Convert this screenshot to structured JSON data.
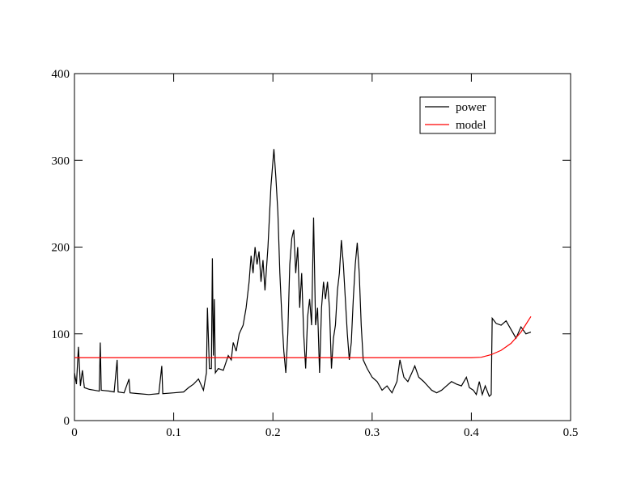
{
  "chart_data": {
    "type": "line",
    "xlim": [
      0,
      0.5
    ],
    "xticks": [
      0,
      0.1,
      0.2,
      0.3,
      0.4,
      0.5
    ],
    "ylim": [
      0,
      400
    ],
    "yticks": [
      0,
      100,
      200,
      300,
      400
    ],
    "grid": false,
    "legend": "upper right",
    "series": [
      {
        "name": "power",
        "color": "#000000",
        "x": [
          0.0,
          0.002,
          0.004,
          0.006,
          0.008,
          0.01,
          0.015,
          0.02,
          0.025,
          0.026,
          0.027,
          0.035,
          0.04,
          0.043,
          0.044,
          0.05,
          0.055,
          0.056,
          0.065,
          0.075,
          0.085,
          0.088,
          0.089,
          0.1,
          0.11,
          0.115,
          0.12,
          0.125,
          0.13,
          0.133,
          0.134,
          0.136,
          0.138,
          0.139,
          0.14,
          0.141,
          0.142,
          0.145,
          0.15,
          0.155,
          0.158,
          0.16,
          0.163,
          0.166,
          0.17,
          0.173,
          0.176,
          0.178,
          0.18,
          0.182,
          0.184,
          0.186,
          0.188,
          0.19,
          0.192,
          0.195,
          0.198,
          0.201,
          0.203,
          0.205,
          0.207,
          0.209,
          0.211,
          0.213,
          0.215,
          0.217,
          0.219,
          0.221,
          0.223,
          0.225,
          0.227,
          0.229,
          0.231,
          0.233,
          0.235,
          0.237,
          0.239,
          0.241,
          0.243,
          0.245,
          0.247,
          0.249,
          0.251,
          0.253,
          0.255,
          0.257,
          0.259,
          0.261,
          0.263,
          0.265,
          0.267,
          0.269,
          0.271,
          0.273,
          0.275,
          0.277,
          0.279,
          0.281,
          0.283,
          0.285,
          0.287,
          0.289,
          0.291,
          0.295,
          0.3,
          0.305,
          0.31,
          0.315,
          0.32,
          0.325,
          0.328,
          0.332,
          0.336,
          0.34,
          0.343,
          0.347,
          0.352,
          0.356,
          0.36,
          0.365,
          0.37,
          0.375,
          0.38,
          0.385,
          0.39,
          0.395,
          0.398,
          0.402,
          0.405,
          0.408,
          0.411,
          0.414,
          0.418,
          0.42,
          0.421,
          0.425,
          0.43,
          0.435,
          0.44,
          0.445,
          0.45,
          0.455,
          0.46
        ],
        "values": [
          55,
          42,
          85,
          40,
          58,
          38,
          36,
          35,
          34,
          90,
          35,
          34,
          33,
          70,
          33,
          32,
          48,
          32,
          31,
          30,
          31,
          63,
          31,
          32,
          33,
          38,
          42,
          48,
          35,
          55,
          130,
          60,
          60,
          187,
          75,
          140,
          55,
          60,
          58,
          75,
          70,
          90,
          80,
          100,
          110,
          130,
          160,
          190,
          170,
          200,
          180,
          195,
          160,
          185,
          150,
          200,
          270,
          313,
          280,
          240,
          170,
          120,
          80,
          55,
          100,
          180,
          210,
          220,
          170,
          200,
          130,
          170,
          100,
          60,
          120,
          140,
          110,
          234,
          110,
          130,
          55,
          130,
          160,
          140,
          160,
          130,
          60,
          95,
          110,
          150,
          170,
          208,
          180,
          140,
          100,
          70,
          90,
          140,
          180,
          205,
          170,
          110,
          70,
          60,
          50,
          45,
          35,
          40,
          32,
          45,
          70,
          50,
          45,
          55,
          63,
          50,
          45,
          40,
          35,
          32,
          35,
          40,
          45,
          42,
          40,
          50,
          38,
          35,
          30,
          45,
          30,
          40,
          28,
          30,
          118,
          112,
          110,
          115,
          105,
          95,
          108,
          100,
          102
        ]
      },
      {
        "name": "model",
        "color": "#ff0000",
        "x": [
          0,
          0.4,
          0.41,
          0.42,
          0.43,
          0.44,
          0.45,
          0.46
        ],
        "values": [
          72.5,
          72.5,
          73,
          76,
          81,
          89,
          102,
          120
        ]
      }
    ]
  }
}
